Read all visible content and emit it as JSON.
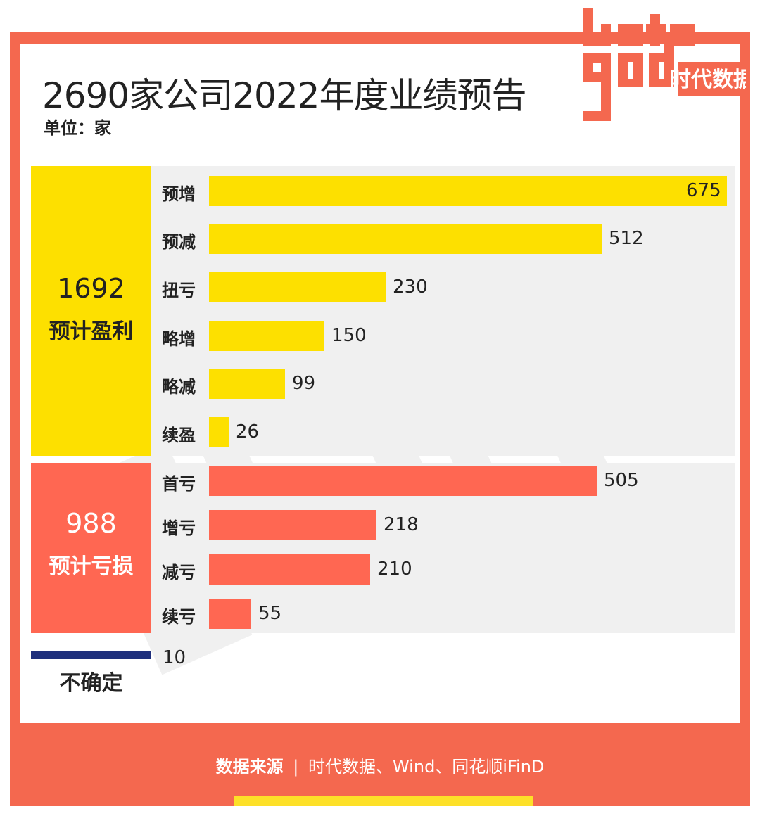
{
  "header": {
    "title": "2690家公司2022年度业绩预告",
    "unit": "单位：家"
  },
  "logo": {
    "text": "时代数据",
    "letters": "data good",
    "color": "#f4684f"
  },
  "colors": {
    "frame": "#f4684f",
    "profit": "#fde000",
    "loss": "#ff6752",
    "uncertain": "#1e2f7c",
    "panel": "#f0f0f0"
  },
  "chart_data": {
    "type": "bar",
    "orientation": "horizontal",
    "title": "2690家公司2022年度业绩预告",
    "unit": "单位：家",
    "groups": [
      {
        "name": "预计盈利",
        "total": 1692,
        "categories": [
          "预增",
          "预减",
          "扭亏",
          "略增",
          "略减",
          "续盈"
        ],
        "values": [
          675,
          512,
          230,
          150,
          99,
          26
        ]
      },
      {
        "name": "预计亏损",
        "total": 988,
        "categories": [
          "首亏",
          "增亏",
          "减亏",
          "续亏"
        ],
        "values": [
          505,
          218,
          210,
          55
        ]
      },
      {
        "name": "不确定",
        "total": 10,
        "categories": [],
        "values": []
      }
    ]
  },
  "footer": {
    "source_label": "数据来源",
    "source_separator": "|",
    "source_text": "时代数据、Wind、同花顺iFinD"
  }
}
